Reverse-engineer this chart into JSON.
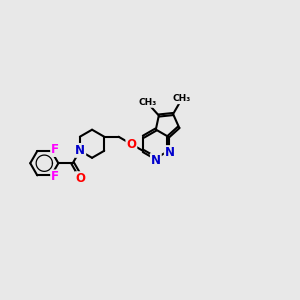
{
  "background_color": "#e8e8e8",
  "bond_color": "#000000",
  "bond_width": 1.5,
  "atom_colors": {
    "F": "#ff00ff",
    "N": "#0000cc",
    "O": "#ff0000",
    "C": "#000000"
  },
  "font_size": 8.5,
  "figsize": [
    3.0,
    3.0
  ],
  "dpi": 100
}
